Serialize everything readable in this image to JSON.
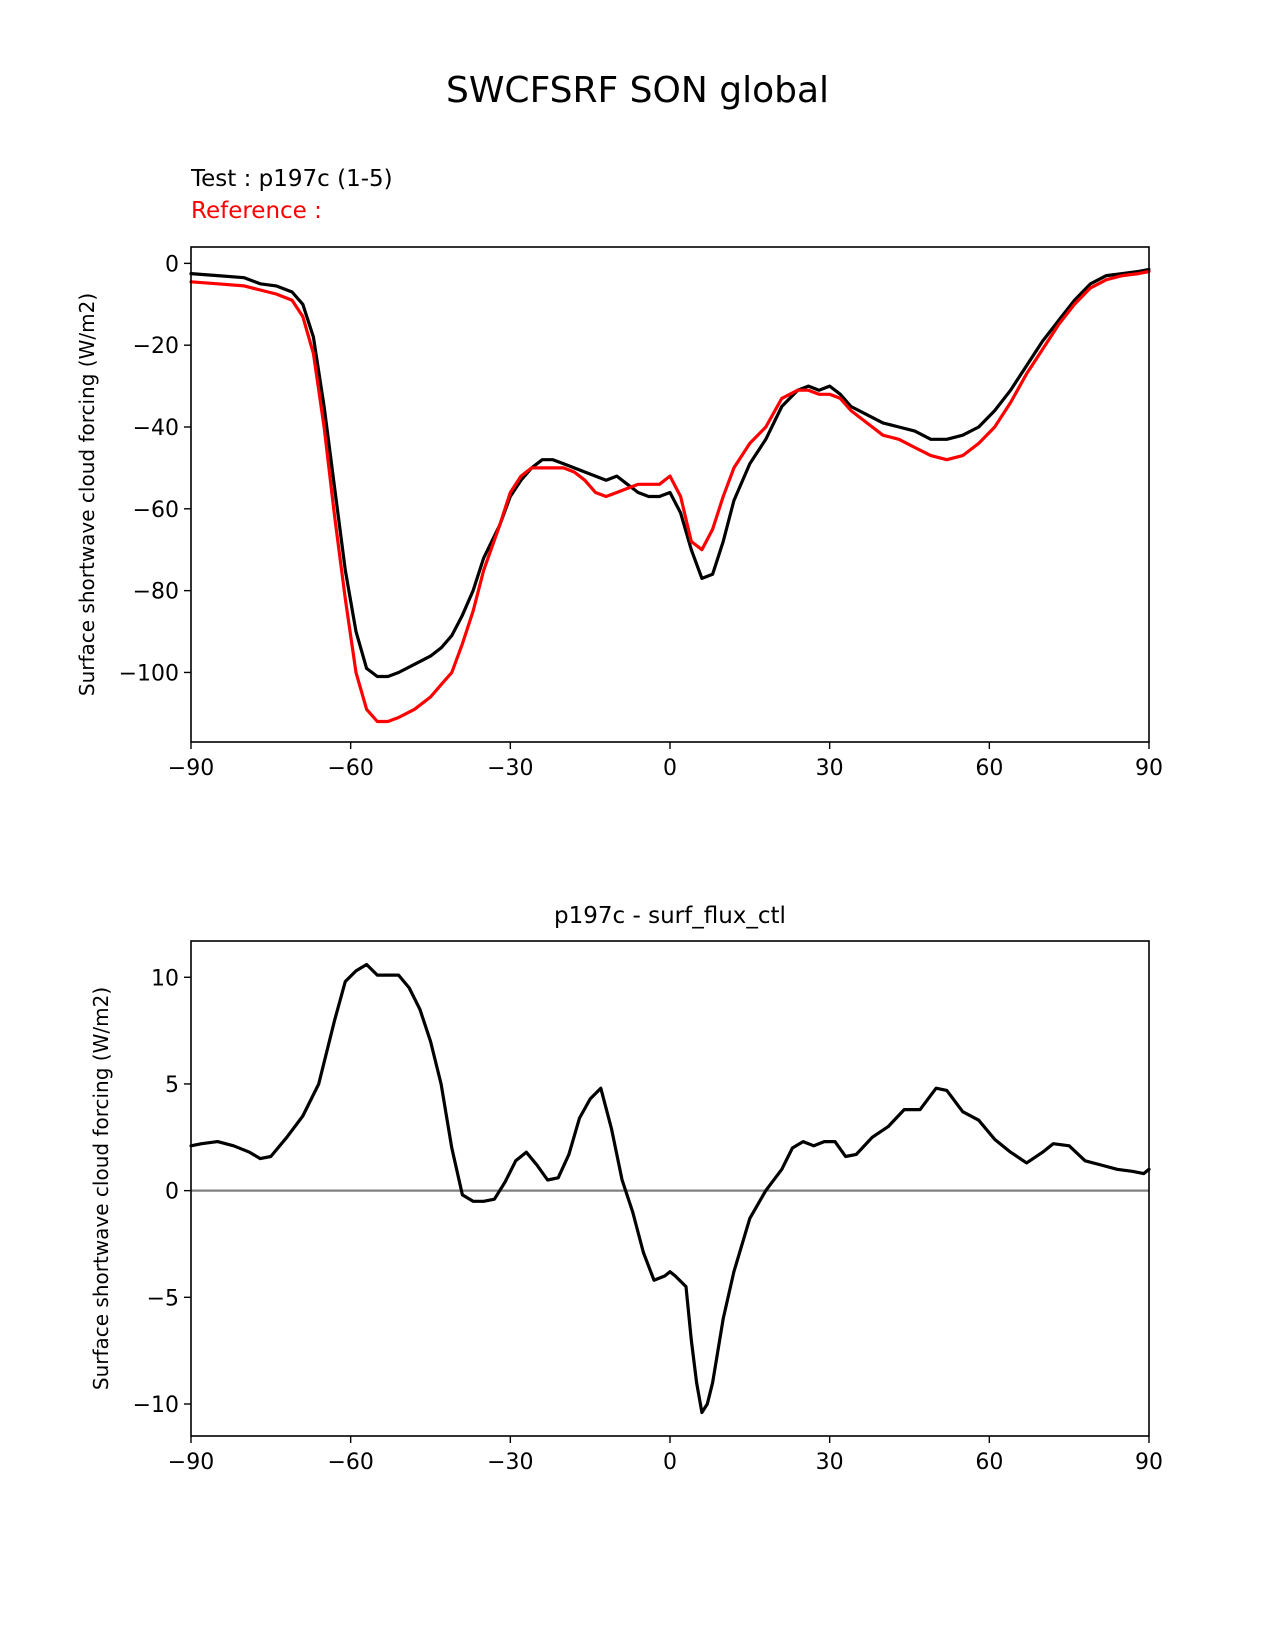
{
  "title": "SWCFSRF SON global",
  "legend": {
    "test_label": "Test : p197c (1-5)",
    "reference_label": "Reference :",
    "test_color": "#000000",
    "reference_color": "#ff0000"
  },
  "chart_data": [
    {
      "type": "line",
      "title": "",
      "xlabel": "",
      "ylabel": "Surface shortwave cloud forcing (W/m2)",
      "xlim": [
        -90,
        90
      ],
      "ylim": [
        -117,
        4
      ],
      "xticks": [
        -90,
        -60,
        -30,
        0,
        30,
        60,
        90
      ],
      "yticks": [
        0,
        -20,
        -40,
        -60,
        -80,
        -100
      ],
      "grid": false,
      "legend": "above-left",
      "series": [
        {
          "name": "Test : p197c (1-5)",
          "color": "#000000",
          "x": [
            -90,
            -85,
            -80,
            -77,
            -74,
            -71,
            -69,
            -67,
            -65,
            -63,
            -61,
            -59,
            -57,
            -55,
            -53,
            -51,
            -48,
            -45,
            -43,
            -41,
            -39,
            -37,
            -35,
            -32,
            -30,
            -28,
            -26,
            -24,
            -22,
            -20,
            -18,
            -16,
            -14,
            -12,
            -10,
            -8,
            -6,
            -4,
            -2,
            0,
            2,
            4,
            6,
            8,
            10,
            12,
            15,
            18,
            21,
            24,
            26,
            28,
            30,
            32,
            34,
            37,
            40,
            43,
            46,
            49,
            52,
            55,
            58,
            61,
            64,
            67,
            70,
            73,
            76,
            79,
            82,
            85,
            88,
            90
          ],
          "y": [
            -2.5,
            -3,
            -3.5,
            -5,
            -5.5,
            -7,
            -10,
            -18,
            -35,
            -55,
            -75,
            -90,
            -99,
            -101,
            -101,
            -100,
            -98,
            -96,
            -94,
            -91,
            -86,
            -80,
            -72,
            -64,
            -57,
            -53,
            -50,
            -48,
            -48,
            -49,
            -50,
            -51,
            -52,
            -53,
            -52,
            -54,
            -56,
            -57,
            -57,
            -56,
            -61,
            -70,
            -77,
            -76,
            -68,
            -58,
            -49,
            -43,
            -35,
            -31,
            -30,
            -31,
            -30,
            -32,
            -35,
            -37,
            -39,
            -40,
            -41,
            -43,
            -43,
            -42,
            -40,
            -36,
            -31,
            -25,
            -19,
            -14,
            -9,
            -5,
            -3,
            -2.5,
            -2,
            -1.5
          ]
        },
        {
          "name": "Reference :",
          "color": "#ff0000",
          "x": [
            -90,
            -85,
            -80,
            -77,
            -74,
            -71,
            -69,
            -67,
            -65,
            -63,
            -61,
            -59,
            -57,
            -55,
            -53,
            -51,
            -48,
            -45,
            -43,
            -41,
            -39,
            -37,
            -35,
            -32,
            -30,
            -28,
            -26,
            -24,
            -22,
            -20,
            -18,
            -16,
            -14,
            -12,
            -10,
            -8,
            -6,
            -4,
            -2,
            0,
            2,
            4,
            6,
            8,
            10,
            12,
            15,
            18,
            21,
            24,
            26,
            28,
            30,
            32,
            34,
            37,
            40,
            43,
            46,
            49,
            52,
            55,
            58,
            61,
            64,
            67,
            70,
            73,
            76,
            79,
            82,
            85,
            88,
            90
          ],
          "y": [
            -4.5,
            -5,
            -5.5,
            -6.5,
            -7.5,
            -9,
            -13,
            -22,
            -40,
            -62,
            -82,
            -100,
            -109,
            -112,
            -112,
            -111,
            -109,
            -106,
            -103,
            -100,
            -93,
            -85,
            -75,
            -64,
            -56,
            -52,
            -50,
            -50,
            -50,
            -50,
            -51,
            -53,
            -56,
            -57,
            -56,
            -55,
            -54,
            -54,
            -54,
            -52,
            -57,
            -68,
            -70,
            -65,
            -57,
            -50,
            -44,
            -40,
            -33,
            -31,
            -31,
            -32,
            -32,
            -33,
            -36,
            -39,
            -42,
            -43,
            -45,
            -47,
            -48,
            -47,
            -44,
            -40,
            -34,
            -27,
            -21,
            -15,
            -10,
            -6,
            -4,
            -3,
            -2.5,
            -2
          ]
        }
      ]
    },
    {
      "type": "line",
      "title": "p197c - surf_flux_ctl",
      "xlabel": "",
      "ylabel": "Surface shortwave cloud forcing (W/m2)",
      "xlim": [
        -90,
        90
      ],
      "ylim": [
        -11.5,
        11.7
      ],
      "xticks": [
        -90,
        -60,
        -30,
        0,
        30,
        60,
        90
      ],
      "yticks": [
        10,
        5,
        0,
        -5,
        -10
      ],
      "grid": false,
      "zero_line_color": "#808080",
      "series": [
        {
          "name": "p197c - surf_flux_ctl",
          "color": "#000000",
          "x": [
            -90,
            -88,
            -85,
            -82,
            -79,
            -77,
            -75,
            -72,
            -69,
            -66,
            -63,
            -61,
            -59,
            -57,
            -55,
            -53,
            -51,
            -49,
            -47,
            -45,
            -43,
            -41,
            -39,
            -37,
            -35,
            -33,
            -31,
            -29,
            -27,
            -25,
            -23,
            -21,
            -19,
            -17,
            -15,
            -13,
            -11,
            -9,
            -7,
            -5,
            -3,
            -1,
            0,
            1,
            3,
            4,
            5,
            6,
            7,
            8,
            9,
            10,
            12,
            15,
            18,
            21,
            23,
            25,
            27,
            29,
            31,
            33,
            35,
            38,
            41,
            44,
            47,
            50,
            52,
            55,
            58,
            61,
            64,
            67,
            70,
            72,
            75,
            78,
            81,
            84,
            87,
            89,
            90
          ],
          "y": [
            2.1,
            2.2,
            2.3,
            2.1,
            1.8,
            1.5,
            1.6,
            2.5,
            3.5,
            5,
            8,
            9.8,
            10.3,
            10.6,
            10.1,
            10.1,
            10.1,
            9.5,
            8.5,
            7,
            5,
            2,
            -0.2,
            -0.5,
            -0.5,
            -0.4,
            0.4,
            1.4,
            1.8,
            1.2,
            0.5,
            0.6,
            1.7,
            3.4,
            4.3,
            4.8,
            2.9,
            0.5,
            -1,
            -2.9,
            -4.2,
            -4,
            -3.8,
            -4,
            -4.5,
            -7,
            -9,
            -10.4,
            -10,
            -9,
            -7.5,
            -6,
            -3.8,
            -1.3,
            0,
            1,
            2,
            2.3,
            2.1,
            2.3,
            2.3,
            1.6,
            1.7,
            2.5,
            3,
            3.8,
            3.8,
            4.8,
            4.7,
            3.7,
            3.3,
            2.4,
            1.8,
            1.3,
            1.8,
            2.2,
            2.1,
            1.4,
            1.2,
            1,
            0.9,
            0.8,
            1
          ]
        }
      ]
    }
  ]
}
